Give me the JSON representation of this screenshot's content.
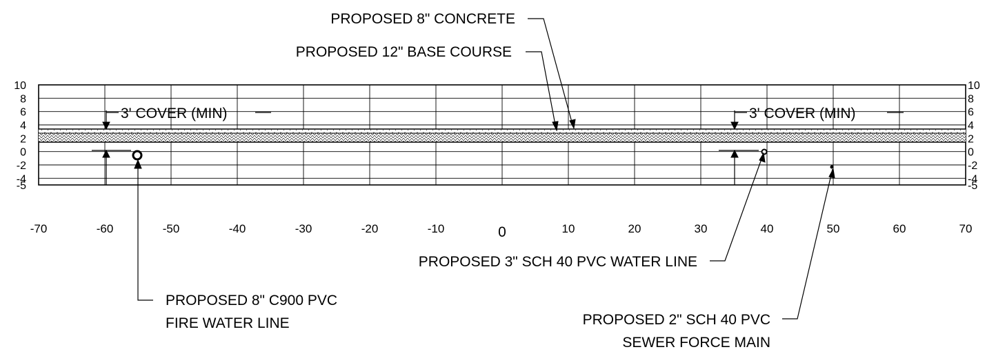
{
  "callouts": {
    "concrete": "PROPOSED 8\" CONCRETE",
    "base_course": "PROPOSED 12\" BASE COURSE",
    "cover_left": "3' COVER (MIN)",
    "cover_right": "3' COVER (MIN)",
    "water_line": "PROPOSED 3\" SCH 40 PVC WATER LINE",
    "fire_line_1": "PROPOSED 8\" C900 PVC",
    "fire_line_2": "FIRE WATER LINE",
    "sewer_1": "PROPOSED 2\" SCH 40 PVC",
    "sewer_2": "SEWER FORCE MAIN"
  },
  "axes": {
    "y_ticks": [
      "10",
      "8",
      "6",
      "4",
      "2",
      "0",
      "-2",
      "-4",
      "-5"
    ],
    "x_ticks": [
      "-70",
      "-60",
      "-50",
      "-40",
      "-30",
      "-20",
      "-10",
      "0",
      "10",
      "20",
      "30",
      "40",
      "50",
      "60",
      "70"
    ]
  },
  "section": {
    "x_range": [
      -70,
      70
    ],
    "y_range": [
      -5,
      10
    ],
    "grid": "on",
    "pipes": [
      {
        "name": "fire water line",
        "x": -55,
        "y": -0.5
      },
      {
        "name": "water line",
        "x": 40,
        "y": 0
      },
      {
        "name": "sewer force main",
        "x": 50,
        "y": -2.5
      }
    ]
  },
  "colors": {
    "ink": "#000000",
    "grid": "#000000",
    "fill": "#ffffff"
  }
}
